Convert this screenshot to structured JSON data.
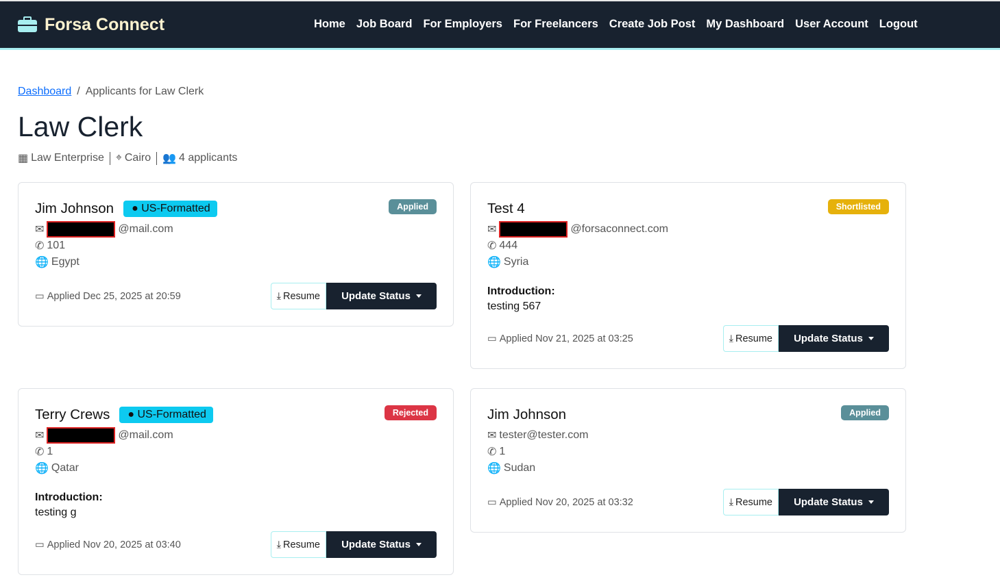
{
  "brand": {
    "name": "Forsa Connect",
    "color": "#a7eef0"
  },
  "nav": [
    "Home",
    "Job Board",
    "For Employers",
    "For Freelancers",
    "Create Job Post",
    "My Dashboard",
    "User Account",
    "Logout"
  ],
  "breadcrumb": {
    "link": "Dashboard",
    "sep": "/",
    "current": "Applicants for Law Clerk"
  },
  "job": {
    "title": "Law Clerk",
    "company": "Law Enterprise",
    "location": "Cairo",
    "applicants": "4 applicants"
  },
  "labels": {
    "resume": "Resume",
    "update": "Update Status",
    "intro": "Introduction:"
  },
  "cards": [
    {
      "name": "Jim Johnson",
      "badge": "US-Formatted",
      "status": "Applied",
      "status_color": "#5a8f99",
      "email": "@mail.com",
      "phone": "101",
      "country": "Egypt",
      "applied": "Applied Dec 25, 2025 at 20:59"
    },
    {
      "name": "Test 4",
      "status": "Shortlisted",
      "status_color": "#e6b10c",
      "email": "@forsaconnect.com",
      "phone": "444",
      "country": "Syria",
      "intro": "testing 567",
      "applied": "Applied Nov 21, 2025 at 03:25"
    },
    {
      "name": "Terry Crews",
      "badge": "US-Formatted",
      "status": "Rejected",
      "status_color": "#dc3545",
      "email": "@mail.com",
      "phone": "1",
      "country": "Qatar",
      "intro": "testing g",
      "applied": "Applied Nov 20, 2025 at 03:40"
    },
    {
      "name": "Jim Johnson",
      "status": "Applied",
      "status_color": "#5a8f99",
      "email": "tester@tester.com",
      "phone": "1",
      "country": "Sudan",
      "applied": "Applied Nov 20, 2025 at 03:32"
    }
  ]
}
